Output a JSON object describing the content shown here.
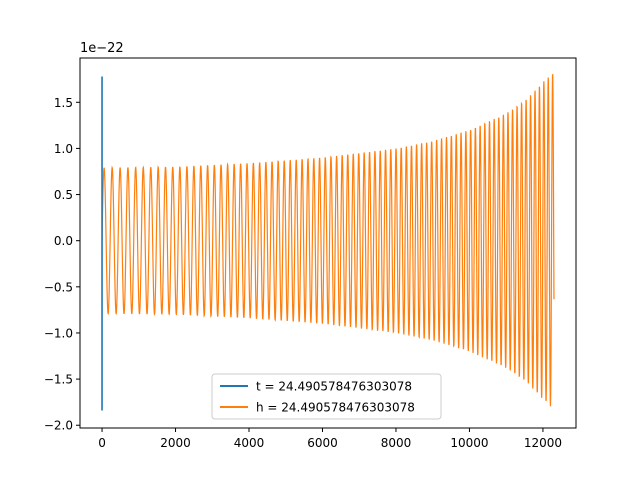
{
  "chart_data": {
    "type": "line",
    "title": "",
    "xlabel": "",
    "ylabel": "",
    "y_offset_label": "1e−22",
    "xlim": [
      -600,
      12900
    ],
    "ylim": [
      -2.03,
      1.98
    ],
    "x_ticks": [
      0,
      2000,
      4000,
      6000,
      8000,
      10000,
      12000
    ],
    "x_tick_labels": [
      "0",
      "2000",
      "4000",
      "6000",
      "8000",
      "10000",
      "12000"
    ],
    "y_ticks": [
      -2.0,
      -1.5,
      -1.0,
      -0.5,
      0.0,
      0.5,
      1.0,
      1.5
    ],
    "y_tick_labels": [
      "−2.0",
      "−1.5",
      "−1.0",
      "−0.5",
      "0.0",
      "0.5",
      "1.0",
      "1.5"
    ],
    "grid": false,
    "legend_position": "lower center",
    "series": [
      {
        "name": "t = 24.490578476303078",
        "color": "#1f77b4",
        "description_points": [
          {
            "x": 0,
            "y": 1.78
          },
          {
            "x": 0,
            "y": -1.84
          },
          {
            "x": 0,
            "y": 0.0
          }
        ]
      },
      {
        "name": "h = 24.490578476303078",
        "color": "#ff7f0e",
        "envelope": [
          {
            "x": 0,
            "amp": 0.79
          },
          {
            "x": 2000,
            "amp": 0.8
          },
          {
            "x": 4000,
            "amp": 0.84
          },
          {
            "x": 6000,
            "amp": 0.9
          },
          {
            "x": 8000,
            "amp": 1.0
          },
          {
            "x": 9000,
            "amp": 1.08
          },
          {
            "x": 10000,
            "amp": 1.2
          },
          {
            "x": 11000,
            "amp": 1.38
          },
          {
            "x": 11600,
            "amp": 1.55
          },
          {
            "x": 12000,
            "amp": 1.72
          },
          {
            "x": 12300,
            "amp": 1.83
          }
        ],
        "x_end": 12300
      }
    ]
  }
}
